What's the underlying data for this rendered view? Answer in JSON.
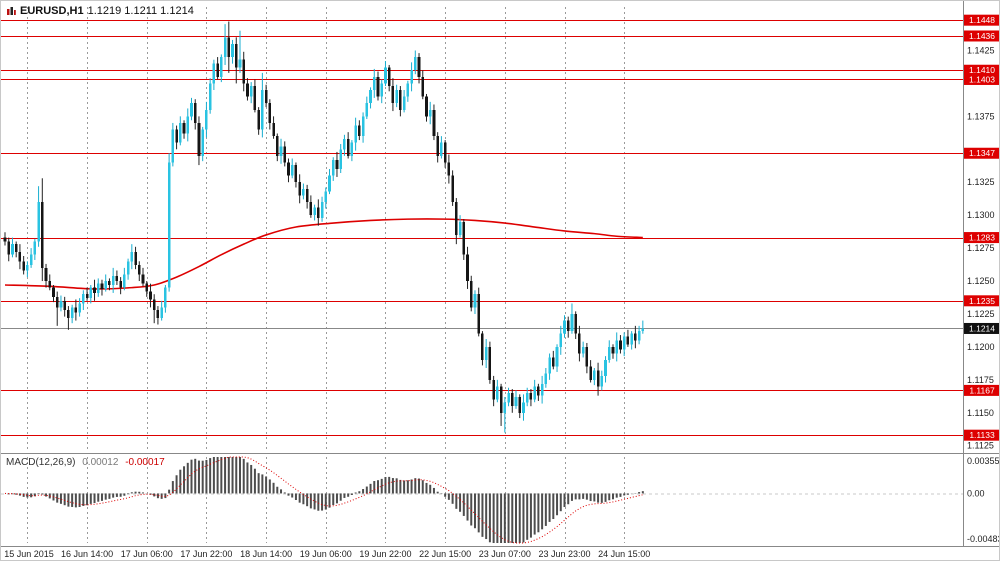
{
  "header": {
    "symbol_label": "EURUSD,H1",
    "quote": "1.1219 1.1211 1.1214"
  },
  "macd_label": {
    "name": "MACD(12,26,9)",
    "value": "0.00012",
    "signal_value": "-0.00017"
  },
  "colors": {
    "bull": "#29c3e2",
    "bull_wick": "#17aed0",
    "bear": "#151515",
    "bear_wick": "#222222",
    "hline": "#dd0000",
    "ma": "#dd0000",
    "grid": "#9a9a9a",
    "separator": "#888888",
    "flag_bg": "#dd0000",
    "flag_text": "#ffffff",
    "current_flag_bg": "#111111",
    "bid_line": "#888888",
    "hist": "#4d4d4d",
    "signal": "#dd0000",
    "zero_line": "#c8c8c8"
  },
  "chart_data": {
    "type": "candlestick",
    "symbol": "EURUSD",
    "timeframe": "H1",
    "grid": "vertical-dashed",
    "legend_position": "none",
    "y_axis": {
      "max": 1.1458,
      "min": 1.1121,
      "ticks": [
        1.1425,
        1.1375,
        1.1325,
        1.13,
        1.1275,
        1.125,
        1.1225,
        1.12,
        1.1175,
        1.115,
        1.1125
      ]
    },
    "hlines": [
      1.1448,
      1.1436,
      1.141,
      1.1403,
      1.1347,
      1.1283,
      1.1235,
      1.1167,
      1.1133
    ],
    "current_price": 1.1214,
    "x_labels": [
      {
        "t": "15 Jun 2015",
        "i": 6
      },
      {
        "t": "16 Jun 14:00",
        "i": 22
      },
      {
        "t": "17 Jun 06:00",
        "i": 38
      },
      {
        "t": "17 Jun 22:00",
        "i": 54
      },
      {
        "t": "18 Jun 14:00",
        "i": 70
      },
      {
        "t": "19 Jun 06:00",
        "i": 86
      },
      {
        "t": "19 Jun 22:00",
        "i": 102
      },
      {
        "t": "22 Jun 15:00",
        "i": 118
      },
      {
        "t": "23 Jun 07:00",
        "i": 134
      },
      {
        "t": "23 Jun 23:00",
        "i": 150
      },
      {
        "t": "24 Jun 15:00",
        "i": 166
      }
    ],
    "ma_period_line": [
      [
        0,
        1.1247
      ],
      [
        12,
        1.1246
      ],
      [
        24,
        1.1244
      ],
      [
        34,
        1.1245
      ],
      [
        40,
        1.1247
      ],
      [
        46,
        1.1253
      ],
      [
        52,
        1.1261
      ],
      [
        58,
        1.127
      ],
      [
        64,
        1.1278
      ],
      [
        70,
        1.1285
      ],
      [
        78,
        1.1291
      ],
      [
        88,
        1.1294
      ],
      [
        98,
        1.1296
      ],
      [
        108,
        1.1297
      ],
      [
        118,
        1.1297
      ],
      [
        126,
        1.1296
      ],
      [
        134,
        1.1294
      ],
      [
        142,
        1.1291
      ],
      [
        150,
        1.1288
      ],
      [
        158,
        1.1286
      ],
      [
        164,
        1.1284
      ],
      [
        171,
        1.1283
      ]
    ],
    "macd_axis": {
      "top": "0.00355",
      "zero": "0.00",
      "bottom": "-0.00483",
      "params": "12,26,9"
    },
    "candles": [
      [
        1.1283,
        1.1287,
        1.1277,
        1.128
      ],
      [
        1.128,
        1.1283,
        1.1265,
        1.127
      ],
      [
        1.127,
        1.1283,
        1.1268,
        1.1278
      ],
      [
        1.1278,
        1.128,
        1.1268,
        1.1272
      ],
      [
        1.1272,
        1.1278,
        1.1259,
        1.1265
      ],
      [
        1.1265,
        1.1269,
        1.1255,
        1.1258
      ],
      [
        1.1258,
        1.1265,
        1.1253,
        1.1262
      ],
      [
        1.1262,
        1.1275,
        1.126,
        1.127
      ],
      [
        1.127,
        1.1282,
        1.1266,
        1.128
      ],
      [
        1.128,
        1.1322,
        1.1276,
        1.131
      ],
      [
        1.131,
        1.1328,
        1.125,
        1.126
      ],
      [
        1.126,
        1.1263,
        1.1245,
        1.125
      ],
      [
        1.125,
        1.1255,
        1.1243,
        1.1245
      ],
      [
        1.1245,
        1.1247,
        1.1234,
        1.1238
      ],
      [
        1.1238,
        1.1242,
        1.1216,
        1.123
      ],
      [
        1.123,
        1.1239,
        1.1227,
        1.1235
      ],
      [
        1.1235,
        1.1238,
        1.1223,
        1.1228
      ],
      [
        1.1228,
        1.1231,
        1.1213,
        1.1222
      ],
      [
        1.1222,
        1.1232,
        1.1218,
        1.123
      ],
      [
        1.123,
        1.1236,
        1.122,
        1.1226
      ],
      [
        1.1226,
        1.1237,
        1.1223,
        1.1233
      ],
      [
        1.1233,
        1.1243,
        1.1228,
        1.124
      ],
      [
        1.124,
        1.1245,
        1.1235,
        1.1237
      ],
      [
        1.1237,
        1.1247,
        1.1233,
        1.1245
      ],
      [
        1.1245,
        1.1251,
        1.1235,
        1.1241
      ],
      [
        1.1241,
        1.1252,
        1.1238,
        1.1248
      ],
      [
        1.1248,
        1.1251,
        1.1239,
        1.1244
      ],
      [
        1.1244,
        1.1255,
        1.1242,
        1.125
      ],
      [
        1.125,
        1.1252,
        1.1243,
        1.1247
      ],
      [
        1.1247,
        1.126,
        1.1241,
        1.1254
      ],
      [
        1.1254,
        1.1258,
        1.1247,
        1.125
      ],
      [
        1.125,
        1.1253,
        1.124,
        1.1245
      ],
      [
        1.1245,
        1.126,
        1.1243,
        1.1255
      ],
      [
        1.1255,
        1.1267,
        1.1251,
        1.1265
      ],
      [
        1.1265,
        1.1278,
        1.1259,
        1.1272
      ],
      [
        1.1272,
        1.1276,
        1.1259,
        1.1262
      ],
      [
        1.1262,
        1.1265,
        1.125,
        1.1255
      ],
      [
        1.1255,
        1.126,
        1.1246,
        1.1248
      ],
      [
        1.1248,
        1.125,
        1.1238,
        1.1242
      ],
      [
        1.1242,
        1.1248,
        1.123,
        1.1236
      ],
      [
        1.1236,
        1.124,
        1.1218,
        1.1228
      ],
      [
        1.1228,
        1.1231,
        1.1217,
        1.1222
      ],
      [
        1.1222,
        1.1235,
        1.122,
        1.123
      ],
      [
        1.123,
        1.1247,
        1.1226,
        1.1245
      ],
      [
        1.1245,
        1.1347,
        1.1242,
        1.134
      ],
      [
        1.134,
        1.137,
        1.1337,
        1.1365
      ],
      [
        1.1365,
        1.1368,
        1.135,
        1.1355
      ],
      [
        1.1355,
        1.1375,
        1.1353,
        1.137
      ],
      [
        1.137,
        1.1372,
        1.1358,
        1.1362
      ],
      [
        1.1362,
        1.1381,
        1.1356,
        1.1375
      ],
      [
        1.1375,
        1.1389,
        1.1372,
        1.1385
      ],
      [
        1.1385,
        1.1388,
        1.1365,
        1.137
      ],
      [
        1.137,
        1.1375,
        1.1338,
        1.1345
      ],
      [
        1.1345,
        1.1367,
        1.1341,
        1.1365
      ],
      [
        1.1365,
        1.1386,
        1.1359,
        1.138
      ],
      [
        1.138,
        1.1404,
        1.1377,
        1.14
      ],
      [
        1.14,
        1.1418,
        1.1395,
        1.1415
      ],
      [
        1.1415,
        1.142,
        1.1403,
        1.1405
      ],
      [
        1.1405,
        1.1422,
        1.1401,
        1.142
      ],
      [
        1.142,
        1.1445,
        1.1414,
        1.1435
      ],
      [
        1.1435,
        1.1447,
        1.1408,
        1.142
      ],
      [
        1.142,
        1.1433,
        1.1415,
        1.143
      ],
      [
        1.143,
        1.1435,
        1.14,
        1.1412
      ],
      [
        1.1412,
        1.144,
        1.1408,
        1.1418
      ],
      [
        1.1418,
        1.1424,
        1.1394,
        1.14
      ],
      [
        1.14,
        1.1404,
        1.1387,
        1.139
      ],
      [
        1.139,
        1.1401,
        1.1385,
        1.1398
      ],
      [
        1.1398,
        1.1403,
        1.1378,
        1.138
      ],
      [
        1.138,
        1.1382,
        1.1361,
        1.1365
      ],
      [
        1.1365,
        1.1408,
        1.1359,
        1.1395
      ],
      [
        1.1395,
        1.1399,
        1.1382,
        1.1385
      ],
      [
        1.1385,
        1.1388,
        1.1365,
        1.137
      ],
      [
        1.137,
        1.1375,
        1.1358,
        1.136
      ],
      [
        1.136,
        1.1362,
        1.1341,
        1.1345
      ],
      [
        1.1345,
        1.1358,
        1.1339,
        1.1352
      ],
      [
        1.1352,
        1.1356,
        1.1337,
        1.134
      ],
      [
        1.134,
        1.1343,
        1.1325,
        1.133
      ],
      [
        1.133,
        1.1343,
        1.1328,
        1.1338
      ],
      [
        1.1338,
        1.134,
        1.1321,
        1.1325
      ],
      [
        1.1325,
        1.1331,
        1.1309,
        1.1315
      ],
      [
        1.1315,
        1.1324,
        1.1312,
        1.132
      ],
      [
        1.132,
        1.1323,
        1.1305,
        1.131
      ],
      [
        1.131,
        1.1315,
        1.1298,
        1.13
      ],
      [
        1.13,
        1.1308,
        1.1296,
        1.1306
      ],
      [
        1.1306,
        1.1312,
        1.1292,
        1.1298
      ],
      [
        1.1298,
        1.1314,
        1.1295,
        1.131
      ],
      [
        1.131,
        1.1321,
        1.1305,
        1.1318
      ],
      [
        1.1318,
        1.1335,
        1.1316,
        1.133
      ],
      [
        1.133,
        1.1344,
        1.1326,
        1.1342
      ],
      [
        1.1342,
        1.1348,
        1.1329,
        1.1335
      ],
      [
        1.1335,
        1.1354,
        1.1332,
        1.135
      ],
      [
        1.135,
        1.1361,
        1.1345,
        1.1358
      ],
      [
        1.1358,
        1.1363,
        1.1343,
        1.1345
      ],
      [
        1.1345,
        1.1357,
        1.1341,
        1.1355
      ],
      [
        1.1355,
        1.1374,
        1.1349,
        1.1368
      ],
      [
        1.1368,
        1.1372,
        1.1357,
        1.136
      ],
      [
        1.136,
        1.1378,
        1.1355,
        1.1375
      ],
      [
        1.1375,
        1.139,
        1.1373,
        1.1385
      ],
      [
        1.1385,
        1.1397,
        1.1381,
        1.1395
      ],
      [
        1.1395,
        1.1411,
        1.1389,
        1.1405
      ],
      [
        1.1405,
        1.1409,
        1.1387,
        1.139
      ],
      [
        1.139,
        1.1403,
        1.1385,
        1.14
      ],
      [
        1.14,
        1.1417,
        1.1398,
        1.1412
      ],
      [
        1.1412,
        1.1414,
        1.1394,
        1.1398
      ],
      [
        1.1398,
        1.1404,
        1.1379,
        1.1385
      ],
      [
        1.1385,
        1.1399,
        1.1382,
        1.1395
      ],
      [
        1.1395,
        1.1398,
        1.1375,
        1.138
      ],
      [
        1.138,
        1.1395,
        1.1378,
        1.139
      ],
      [
        1.139,
        1.1402,
        1.1386,
        1.14
      ],
      [
        1.14,
        1.1416,
        1.1394,
        1.141
      ],
      [
        1.141,
        1.1425,
        1.1407,
        1.142
      ],
      [
        1.142,
        1.1423,
        1.14,
        1.1405
      ],
      [
        1.1405,
        1.141,
        1.1388,
        1.139
      ],
      [
        1.139,
        1.1392,
        1.1371,
        1.1375
      ],
      [
        1.1375,
        1.1386,
        1.1369,
        1.138
      ],
      [
        1.138,
        1.1384,
        1.1357,
        1.136
      ],
      [
        1.136,
        1.1363,
        1.134,
        1.1345
      ],
      [
        1.1345,
        1.136,
        1.1343,
        1.1355
      ],
      [
        1.1355,
        1.1357,
        1.1336,
        1.134
      ],
      [
        1.134,
        1.1346,
        1.1324,
        1.133
      ],
      [
        1.133,
        1.1334,
        1.1307,
        1.131
      ],
      [
        1.131,
        1.1313,
        1.1278,
        1.1285
      ],
      [
        1.1285,
        1.13,
        1.1283,
        1.1295
      ],
      [
        1.1295,
        1.1297,
        1.1266,
        1.127
      ],
      [
        1.127,
        1.1276,
        1.1244,
        1.125
      ],
      [
        1.125,
        1.1254,
        1.1227,
        1.123
      ],
      [
        1.123,
        1.1243,
        1.1225,
        1.124
      ],
      [
        1.124,
        1.1245,
        1.1208,
        1.121
      ],
      [
        1.121,
        1.1212,
        1.1186,
        1.119
      ],
      [
        1.119,
        1.1206,
        1.1184,
        1.12
      ],
      [
        1.12,
        1.1204,
        1.1172,
        1.1175
      ],
      [
        1.1175,
        1.1178,
        1.1155,
        1.116
      ],
      [
        1.116,
        1.1175,
        1.1158,
        1.117
      ],
      [
        1.117,
        1.1172,
        1.114,
        1.115
      ],
      [
        1.115,
        1.1162,
        1.1135,
        1.1158
      ],
      [
        1.1158,
        1.1169,
        1.1155,
        1.1165
      ],
      [
        1.1165,
        1.1168,
        1.115,
        1.1155
      ],
      [
        1.1155,
        1.1167,
        1.1153,
        1.1162
      ],
      [
        1.1162,
        1.1164,
        1.1146,
        1.115
      ],
      [
        1.115,
        1.1164,
        1.1144,
        1.1158
      ],
      [
        1.1158,
        1.1169,
        1.1155,
        1.1165
      ],
      [
        1.1165,
        1.1168,
        1.1155,
        1.116
      ],
      [
        1.116,
        1.1175,
        1.1158,
        1.117
      ],
      [
        1.117,
        1.1172,
        1.1159,
        1.1163
      ],
      [
        1.1163,
        1.1178,
        1.1157,
        1.1172
      ],
      [
        1.1172,
        1.1184,
        1.1169,
        1.118
      ],
      [
        1.118,
        1.1195,
        1.1175,
        1.1192
      ],
      [
        1.1192,
        1.1197,
        1.1183,
        1.1185
      ],
      [
        1.1185,
        1.1202,
        1.1181,
        1.12
      ],
      [
        1.12,
        1.1216,
        1.1194,
        1.121
      ],
      [
        1.121,
        1.1224,
        1.1207,
        1.122
      ],
      [
        1.122,
        1.1223,
        1.1207,
        1.1212
      ],
      [
        1.1212,
        1.1233,
        1.121,
        1.1225
      ],
      [
        1.1225,
        1.1227,
        1.1206,
        1.121
      ],
      [
        1.121,
        1.1216,
        1.1189,
        1.1195
      ],
      [
        1.1195,
        1.1204,
        1.1192,
        1.12
      ],
      [
        1.12,
        1.1203,
        1.118,
        1.1185
      ],
      [
        1.1185,
        1.119,
        1.1173,
        1.1175
      ],
      [
        1.1175,
        1.1184,
        1.1171,
        1.1182
      ],
      [
        1.1182,
        1.1188,
        1.1163,
        1.117
      ],
      [
        1.117,
        1.1182,
        1.1167,
        1.1178
      ],
      [
        1.1178,
        1.1193,
        1.1173,
        1.119
      ],
      [
        1.119,
        1.1205,
        1.1188,
        1.12
      ],
      [
        1.12,
        1.1202,
        1.1191,
        1.1195
      ],
      [
        1.1195,
        1.1211,
        1.1189,
        1.1205
      ],
      [
        1.1205,
        1.1209,
        1.1195,
        1.1198
      ],
      [
        1.1198,
        1.1211,
        1.1193,
        1.1208
      ],
      [
        1.1208,
        1.1213,
        1.12,
        1.1202
      ],
      [
        1.1202,
        1.1212,
        1.1198,
        1.121
      ],
      [
        1.121,
        1.1216,
        1.1199,
        1.1205
      ],
      [
        1.1205,
        1.1216,
        1.1202,
        1.1212
      ],
      [
        1.1212,
        1.122,
        1.121,
        1.1214
      ]
    ]
  }
}
